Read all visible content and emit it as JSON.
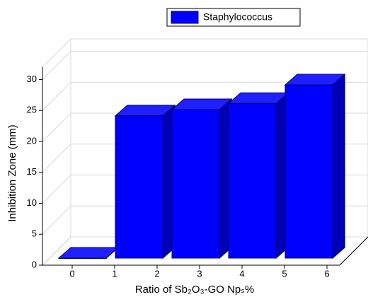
{
  "chart_data": {
    "type": "bar3d",
    "xlabel": "Ratio of Sb₂O₃-GO Npₛ%",
    "ylabel": "Inhibition Zone  (mm)",
    "categories": [
      null,
      null,
      null,
      null,
      null
    ],
    "series": [
      {
        "name": "Staphylococcus",
        "color": "#0000ff",
        "values": [
          0,
          23,
          24,
          25,
          28
        ]
      }
    ],
    "ylim": [
      0,
      32
    ],
    "yticks": [
      0,
      5,
      10,
      15,
      20,
      25,
      30
    ],
    "xlim": [
      -0.7,
      6.3
    ],
    "xticks": [
      0,
      1,
      2,
      3,
      4,
      5,
      6
    ],
    "grid": true,
    "legend": "top"
  }
}
